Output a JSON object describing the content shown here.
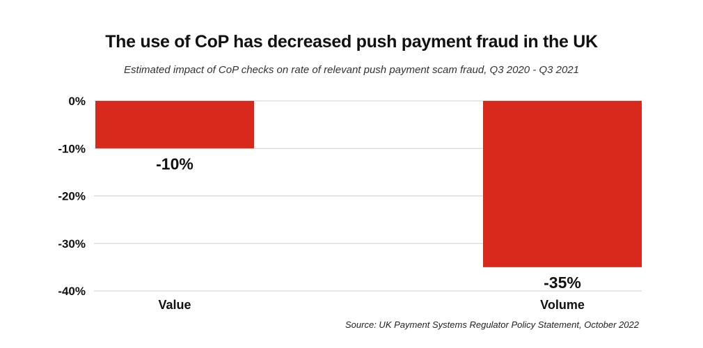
{
  "chart_data": {
    "type": "bar",
    "title": "The use of CoP has decreased push payment fraud in the UK",
    "subtitle": "Estimated impact of CoP checks on rate of relevant push payment scam fraud, Q3 2020 - Q3 2021",
    "categories": [
      "Value",
      "Volume"
    ],
    "values": [
      -10,
      -35
    ],
    "data_labels": [
      "-10%",
      "-35%"
    ],
    "ylim": [
      -40,
      0
    ],
    "yticks": [
      0,
      -10,
      -20,
      -30,
      -40
    ],
    "ytick_labels": [
      "0%",
      "-10%",
      "-20%",
      "-30%",
      "-40%"
    ],
    "xlabel": "",
    "ylabel": "",
    "grid": true,
    "bar_color": "#d9291c",
    "source": "Source: UK Payment Systems Regulator Policy Statement, October 2022"
  }
}
